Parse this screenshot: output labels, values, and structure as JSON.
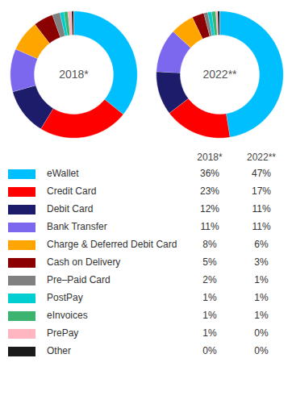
{
  "chart_data": {
    "type": "donut",
    "categories": [
      "eWallet",
      "Credit Card",
      "Debit Card",
      "Bank Transfer",
      "Charge & Deferred Debit Card",
      "Cash on Delivery",
      "Pre–Paid Card",
      "PostPay",
      "eInvoices",
      "PrePay",
      "Other"
    ],
    "colors": [
      "#00BFFF",
      "#FF0000",
      "#1C1C6B",
      "#7B68EE",
      "#FFA500",
      "#8B0000",
      "#808080",
      "#00CED1",
      "#3CB371",
      "#FFB6C1",
      "#1A1A1A"
    ],
    "series": [
      {
        "name": "2018*",
        "values": [
          36,
          23,
          12,
          11,
          8,
          5,
          2,
          1,
          1,
          1,
          0.5
        ],
        "value_labels": [
          "36%",
          "23%",
          "12%",
          "11%",
          "8%",
          "5%",
          "2%",
          "1%",
          "1%",
          "1%",
          "0%"
        ]
      },
      {
        "name": "2022**",
        "values": [
          47,
          17,
          11,
          11,
          6,
          3,
          1,
          1,
          1,
          0.5,
          0.5
        ],
        "value_labels": [
          "47%",
          "17%",
          "11%",
          "11%",
          "6%",
          "3%",
          "1%",
          "1%",
          "1%",
          "0%",
          "0%"
        ]
      }
    ]
  }
}
